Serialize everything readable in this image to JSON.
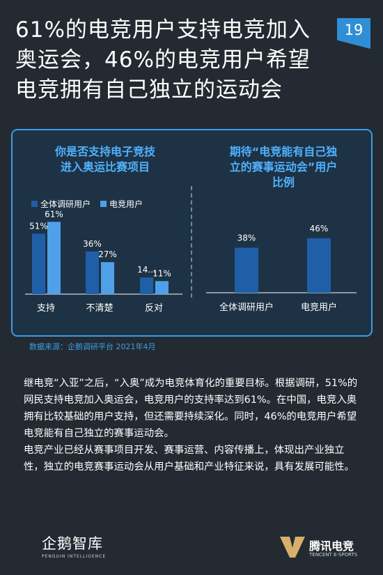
{
  "header": {
    "title_lines": [
      "61%的电竞用户支持电竞加入",
      "奥运会，46%的电竞用户希望",
      "电竞拥有自己独立的运动会"
    ],
    "page_number": "19"
  },
  "colors": {
    "series_dark": "#1f5fa8",
    "series_light": "#4fa0e8",
    "accent": "#3a9fe8",
    "background": "#232a31"
  },
  "chart_data": [
    {
      "type": "bar",
      "title_lines": [
        "你是否支持电子竞技",
        "进入奥运比赛项目"
      ],
      "categories": [
        "支持",
        "不清楚",
        "反对"
      ],
      "series": [
        {
          "name": "全体调研用户",
          "values": [
            51,
            36,
            14
          ],
          "labels": [
            "51%",
            "36%",
            "14..."
          ]
        },
        {
          "name": "电竞用户",
          "values": [
            61,
            27,
            11
          ],
          "labels": [
            "61%",
            "27%",
            "11%"
          ]
        }
      ],
      "ylim": [
        0,
        70
      ],
      "legend": "top-left"
    },
    {
      "type": "bar",
      "title_lines": [
        "期待“电竞能有自己独",
        "立的赛事运动会”用户",
        "比例"
      ],
      "categories": [
        "全体调研用户",
        "电竞用户"
      ],
      "values": [
        38,
        46
      ],
      "labels": [
        "38%",
        "46%"
      ],
      "ylim": [
        0,
        70
      ]
    }
  ],
  "source": "数据来源：企鹅调研平台 2021年4月",
  "body_paragraphs": [
    "继电竞“入亚”之后，“入奥”成为电竞体育化的重要目标。根据调研，51%的网民支持电竞加入奥运会，电竞用户的支持率达到61%。在中国，电竞入奥拥有比较基础的用户支持，但还需要持续深化。同时，46%的电竞用户希望电竞能有自己独立的赛事运动会。",
    "电竞产业已经从赛事项目开发、赛事运营、内容传播上，体现出产业独立性，独立的电竞赛事运动会从用户基础和产业特征来说，具有发展可能性。"
  ],
  "footer": {
    "left_brand": "企鹅智库",
    "left_sub": "PENGUIN INTELLIGENCE",
    "right_brand": "腾讯电竞",
    "right_sub": "TENCENT E-SPORTS"
  }
}
